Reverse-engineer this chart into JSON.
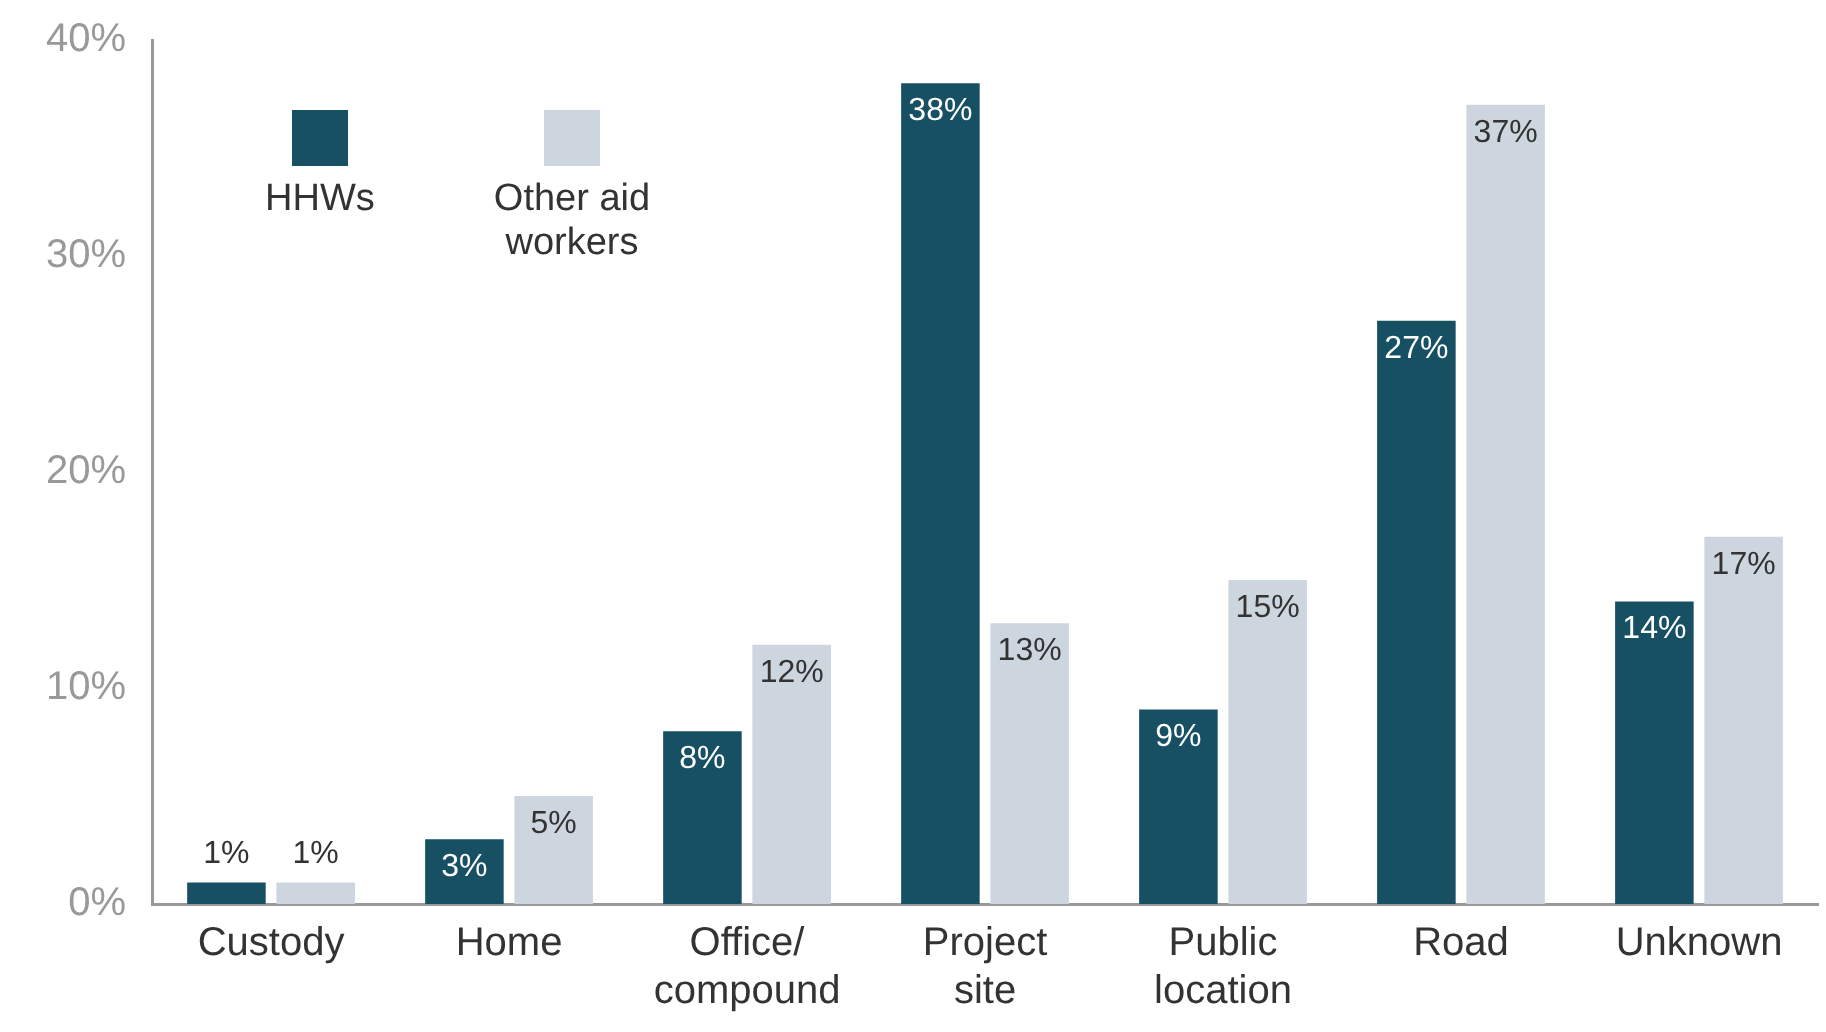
{
  "chart_data": {
    "type": "bar",
    "categories": [
      "Custody",
      "Home",
      "Office/ compound",
      "Project site",
      "Public location",
      "Road",
      "Unknown"
    ],
    "series": [
      {
        "name": "HHWs",
        "color": "#174f63",
        "values": [
          1,
          3,
          8,
          38,
          9,
          27,
          14
        ],
        "value_labels": [
          "1%",
          "3%",
          "8%",
          "38%",
          "9%",
          "27%",
          "14%"
        ]
      },
      {
        "name": "Other aid workers",
        "color": "#cdd6df",
        "values": [
          1,
          5,
          12,
          13,
          15,
          37,
          17
        ],
        "value_labels": [
          "1%",
          "5%",
          "12%",
          "13%",
          "15%",
          "37%",
          "17%"
        ]
      }
    ],
    "ylim": [
      0,
      40
    ],
    "yticks": [
      {
        "value": 0,
        "label": "0%"
      },
      {
        "value": 10,
        "label": "10%"
      },
      {
        "value": 20,
        "label": "20%"
      },
      {
        "value": 30,
        "label": "30%"
      },
      {
        "value": 40,
        "label": "40%"
      }
    ],
    "grid": false,
    "legend": "top left"
  }
}
